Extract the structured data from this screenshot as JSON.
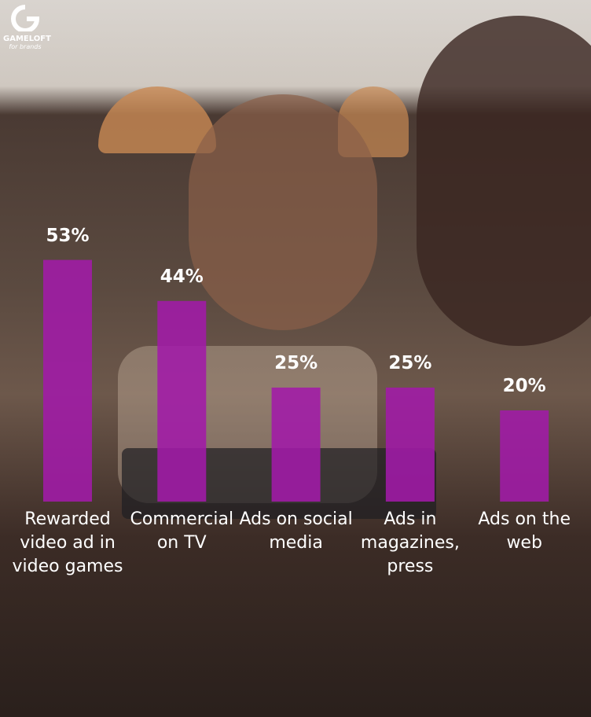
{
  "brand": {
    "name": "GAMELOFT",
    "tagline": "for brands"
  },
  "chart_data": {
    "type": "bar",
    "categories": [
      "Rewarded video ad in video games",
      "Commercial on TV",
      "Ads on social media",
      "Ads in magazines, press",
      "Ads on the web"
    ],
    "values": [
      53,
      44,
      25,
      25,
      20
    ],
    "value_labels": [
      "53%",
      "44%",
      "25%",
      "25%",
      "20%"
    ],
    "color": "#a21aa8"
  }
}
